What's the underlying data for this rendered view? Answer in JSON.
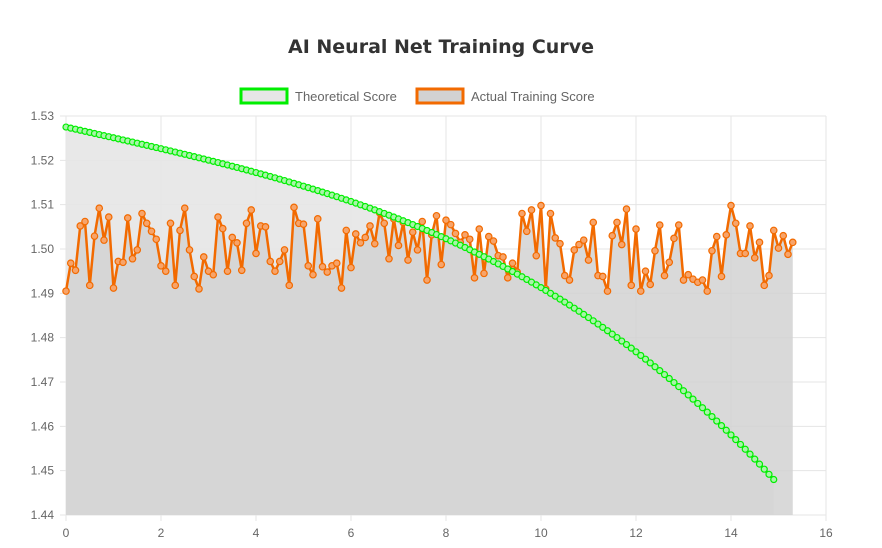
{
  "chart_data": {
    "type": "line",
    "title": "AI Neural Net Training Curve",
    "xlim": [
      0,
      16
    ],
    "ylim": [
      1.44,
      1.53
    ],
    "x_ticks": [
      "0",
      "2",
      "4",
      "6",
      "8",
      "10",
      "12",
      "14",
      "16"
    ],
    "y_ticks": [
      "1.44",
      "1.45",
      "1.46",
      "1.47",
      "1.48",
      "1.49",
      "1.50",
      "1.51",
      "1.52",
      "1.53"
    ],
    "grid": true,
    "legend_position": "top",
    "series": [
      {
        "name": "Theoretical Score",
        "color": "#00ee00",
        "fill": "#e6e6e6",
        "x_start": 0,
        "x_end": 14.9,
        "y_start": 1.5275,
        "y_end": 1.448,
        "points": 150,
        "curve": "concave-down"
      },
      {
        "name": "Actual Training Score",
        "color": "#f26a00",
        "fill": "#d2d2d2",
        "x_start": 0,
        "x_step": 0.1,
        "values": [
          1.4905,
          1.4968,
          1.4952,
          1.5052,
          1.5062,
          1.4918,
          1.5029,
          1.5092,
          1.502,
          1.5072,
          1.4912,
          1.4972,
          1.497,
          1.507,
          1.4978,
          1.4998,
          1.508,
          1.5058,
          1.504,
          1.5022,
          1.4962,
          1.495,
          1.5058,
          1.4918,
          1.5042,
          1.5092,
          1.4998,
          1.4938,
          1.491,
          1.4982,
          1.495,
          1.4942,
          1.5072,
          1.5046,
          1.495,
          1.5026,
          1.5014,
          1.4952,
          1.5058,
          1.5088,
          1.499,
          1.5052,
          1.505,
          1.4972,
          1.495,
          1.4972,
          1.4998,
          1.4918,
          1.5094,
          1.5058,
          1.5056,
          1.4962,
          1.4942,
          1.5068,
          1.496,
          1.4948,
          1.4962,
          1.4968,
          1.4912,
          1.5042,
          1.4958,
          1.5034,
          1.5014,
          1.5026,
          1.5052,
          1.5012,
          1.5082,
          1.5058,
          1.4978,
          1.5068,
          1.5008,
          1.506,
          1.4975,
          1.5038,
          1.4998,
          1.5062,
          1.493,
          1.5032,
          1.5075,
          1.4965,
          1.5065,
          1.5055,
          1.5035,
          1.5015,
          1.5032,
          1.5022,
          1.4935,
          1.5045,
          1.4945,
          1.5028,
          1.5018,
          1.4985,
          1.4982,
          1.4935,
          1.4968,
          1.4948,
          1.508,
          1.504,
          1.5088,
          1.4985,
          1.5098,
          1.491,
          1.508,
          1.5025,
          1.5012,
          1.494,
          1.493,
          1.4998,
          1.501,
          1.502,
          1.4975,
          1.506,
          1.494,
          1.4938,
          1.4905,
          1.503,
          1.506,
          1.501,
          1.509,
          1.4918,
          1.5045,
          1.4905,
          1.495,
          1.492,
          1.4996,
          1.5054,
          1.494,
          1.497,
          1.5024,
          1.5054,
          1.493,
          1.4942,
          1.4932,
          1.4925,
          1.493,
          1.4905,
          1.4996,
          1.5028,
          1.4938,
          1.5032,
          1.5098,
          1.5058,
          1.499,
          1.499,
          1.5052,
          1.498,
          1.5015,
          1.4918,
          1.494,
          1.5042,
          1.5002,
          1.503,
          1.4988,
          1.5015
        ]
      }
    ]
  }
}
